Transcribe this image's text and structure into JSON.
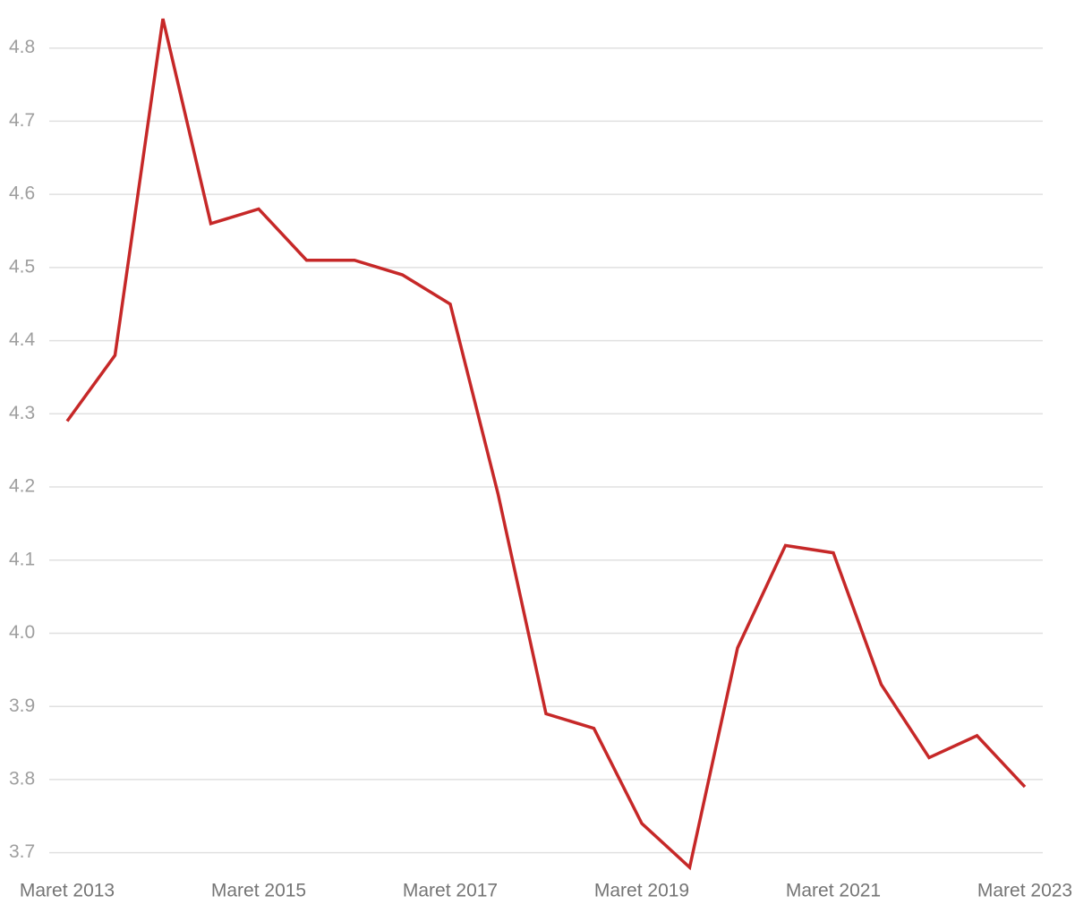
{
  "chart_data": {
    "type": "line",
    "categories": [
      "Maret 2013",
      null,
      null,
      null,
      "Maret 2015",
      null,
      null,
      null,
      "Maret 2017",
      null,
      null,
      null,
      "Maret 2019",
      null,
      null,
      null,
      "Maret 2021",
      null,
      null,
      null,
      "Maret 2023"
    ],
    "series": [
      {
        "color": "#c62828",
        "values": [
          4.29,
          4.38,
          4.84,
          4.56,
          4.58,
          4.51,
          4.51,
          4.49,
          4.45,
          4.19,
          3.89,
          3.87,
          3.74,
          3.68,
          3.98,
          4.12,
          4.11,
          3.93,
          3.83,
          3.86,
          3.79
        ]
      }
    ],
    "ylim": [
      3.68,
      4.84
    ],
    "yticks": [
      3.7,
      3.8,
      3.9,
      {
        "value": 4,
        "label": "4.0"
      },
      4.1,
      4.2,
      4.3,
      4.4,
      4.5,
      4.6,
      4.7,
      4.8
    ],
    "grid": true
  }
}
